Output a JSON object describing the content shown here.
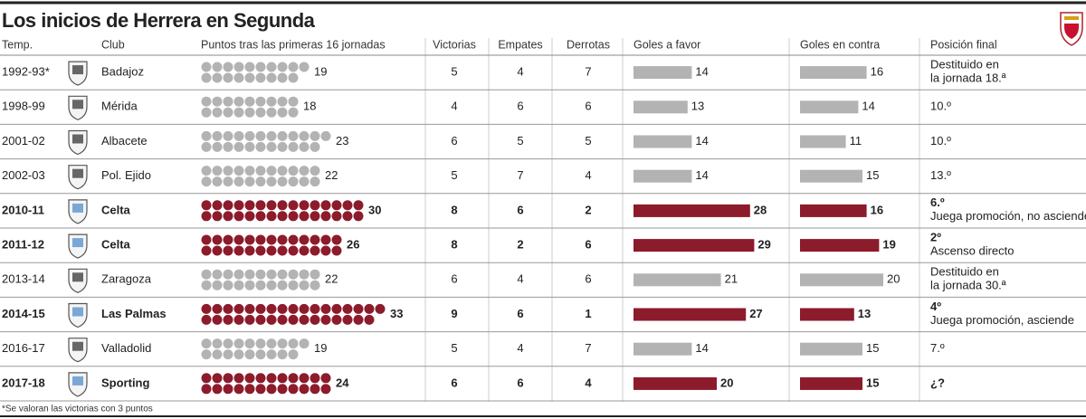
{
  "title": "Los inicios de Herrera en Segunda",
  "columns": [
    "Temp.",
    "Club",
    "Puntos tras las primeras 16 jornadas",
    "Victorias",
    "Empates",
    "Derrotas",
    "Goles a favor",
    "Goles en contra",
    "Posición final"
  ],
  "colors": {
    "normal": "#b3b3b3",
    "highlight": "#8c1b2b"
  },
  "rows": [
    {
      "season": "1992-93*",
      "club": "Badajoz",
      "points": 19,
      "wins": 5,
      "draws": 4,
      "losses": 7,
      "goals_for": 14,
      "goals_against": 16,
      "final": [
        "Destituido en",
        "la jornada 18.ª"
      ],
      "highlight": false
    },
    {
      "season": "1998-99",
      "club": "Mérida",
      "points": 18,
      "wins": 4,
      "draws": 6,
      "losses": 6,
      "goals_for": 13,
      "goals_against": 14,
      "final": [
        "10.º"
      ],
      "highlight": false
    },
    {
      "season": "2001-02",
      "club": "Albacete",
      "points": 23,
      "wins": 6,
      "draws": 5,
      "losses": 5,
      "goals_for": 14,
      "goals_against": 11,
      "final": [
        "10.º"
      ],
      "highlight": false
    },
    {
      "season": "2002-03",
      "club": "Pol. Ejido",
      "points": 22,
      "wins": 5,
      "draws": 7,
      "losses": 4,
      "goals_for": 14,
      "goals_against": 15,
      "final": [
        "13.º"
      ],
      "highlight": false
    },
    {
      "season": "2010-11",
      "club": "Celta",
      "points": 30,
      "wins": 8,
      "draws": 6,
      "losses": 2,
      "goals_for": 28,
      "goals_against": 16,
      "final": [
        "6.º",
        "Juega promoción, no asciende"
      ],
      "highlight": true
    },
    {
      "season": "2011-12",
      "club": "Celta",
      "points": 26,
      "wins": 8,
      "draws": 2,
      "losses": 6,
      "goals_for": 29,
      "goals_against": 19,
      "final": [
        "2º",
        "Ascenso directo"
      ],
      "highlight": true
    },
    {
      "season": "2013-14",
      "club": "Zaragoza",
      "points": 22,
      "wins": 6,
      "draws": 4,
      "losses": 6,
      "goals_for": 21,
      "goals_against": 20,
      "final": [
        "Destituido en",
        "la jornada 30.ª"
      ],
      "highlight": false
    },
    {
      "season": "2014-15",
      "club": "Las Palmas",
      "points": 33,
      "wins": 9,
      "draws": 6,
      "losses": 1,
      "goals_for": 27,
      "goals_against": 13,
      "final": [
        "4º",
        "Juega promoción, asciende"
      ],
      "highlight": true
    },
    {
      "season": "2016-17",
      "club": "Valladolid",
      "points": 19,
      "wins": 5,
      "draws": 4,
      "losses": 7,
      "goals_for": 14,
      "goals_against": 15,
      "final": [
        "7.º"
      ],
      "highlight": false
    },
    {
      "season": "2017-18",
      "club": "Sporting",
      "points": 24,
      "wins": 6,
      "draws": 6,
      "losses": 4,
      "goals_for": 20,
      "goals_against": 15,
      "final": [
        "¿?"
      ],
      "highlight": true
    }
  ],
  "footnote": "*Se valoran las victorias con 3 puntos"
}
